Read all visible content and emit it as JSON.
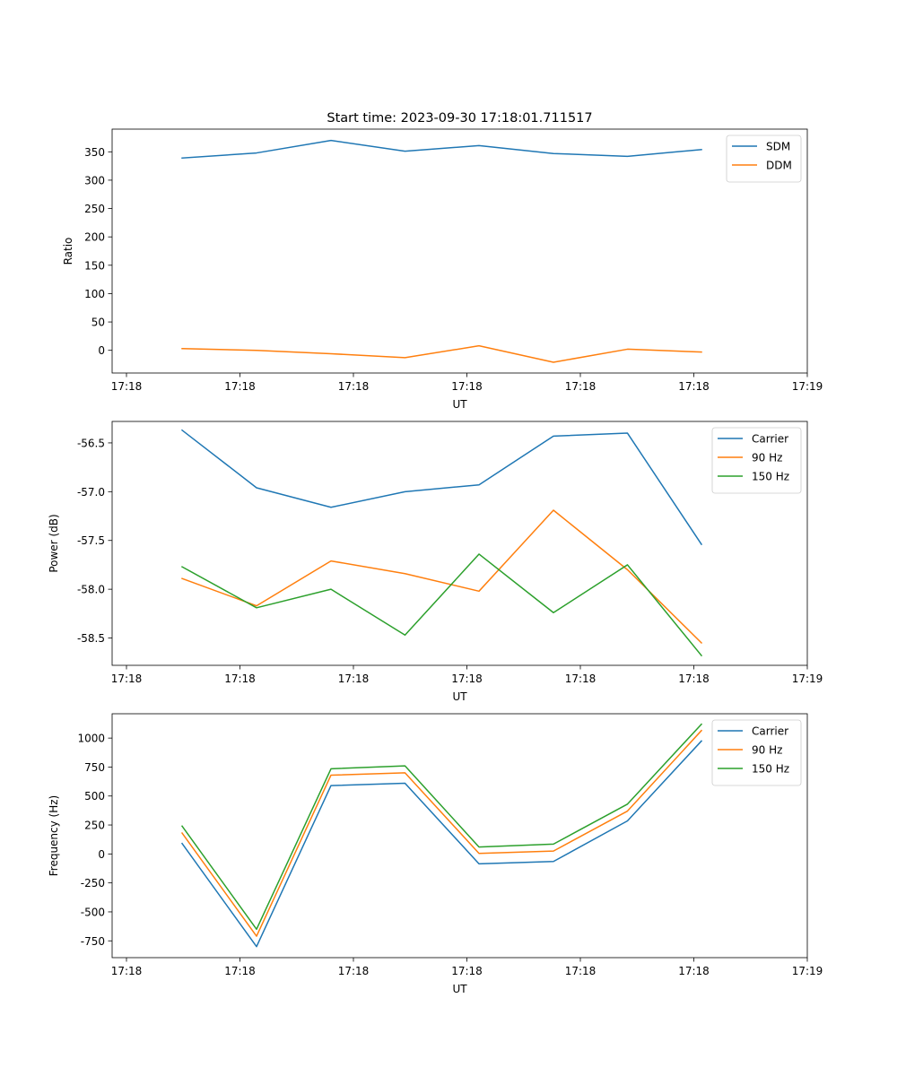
{
  "title": "Start time: 2023-09-30 17:18:01.711517",
  "colors": {
    "blue": "#1f77b4",
    "orange": "#ff7f0e",
    "green": "#2ca02c"
  },
  "chart_data": [
    {
      "type": "line",
      "title": "Start time: 2023-09-30 17:18:01.711517",
      "xlabel": "UT",
      "ylabel": "Ratio",
      "x_ticks": [
        "17:18",
        "17:18",
        "17:18",
        "17:18",
        "17:18",
        "17:18",
        "17:19"
      ],
      "y_ticks": [
        "0",
        "50",
        "100",
        "150",
        "200",
        "250",
        "300",
        "350"
      ],
      "ylim": [
        -40,
        390
      ],
      "legend_position": "upper-right",
      "grid": false,
      "series": [
        {
          "name": "SDM",
          "color": "#1f77b4",
          "values": [
            339,
            348,
            370,
            351,
            361,
            347,
            342,
            354
          ]
        },
        {
          "name": "DDM",
          "color": "#ff7f0e",
          "values": [
            3,
            0,
            -6,
            -13,
            8,
            -21,
            2,
            -3
          ]
        }
      ]
    },
    {
      "type": "line",
      "xlabel": "UT",
      "ylabel": "Power (dB)",
      "x_ticks": [
        "17:18",
        "17:18",
        "17:18",
        "17:18",
        "17:18",
        "17:18",
        "17:19"
      ],
      "y_ticks": [
        "-58.5",
        "-58.0",
        "-57.5",
        "-57.0",
        "-56.5"
      ],
      "ylim": [
        -58.78,
        -56.28
      ],
      "legend_position": "upper-right",
      "grid": false,
      "series": [
        {
          "name": "Carrier",
          "color": "#1f77b4",
          "values": [
            -56.37,
            -56.96,
            -57.16,
            -57.0,
            -56.93,
            -56.43,
            -56.4,
            -57.54
          ]
        },
        {
          "name": "90 Hz",
          "color": "#ff7f0e",
          "values": [
            -57.89,
            -58.17,
            -57.71,
            -57.84,
            -58.02,
            -57.19,
            -57.8,
            -58.55
          ]
        },
        {
          "name": "150 Hz",
          "color": "#2ca02c",
          "values": [
            -57.77,
            -58.19,
            -58.0,
            -58.47,
            -57.64,
            -58.24,
            -57.75,
            -58.68
          ]
        }
      ]
    },
    {
      "type": "line",
      "xlabel": "UT",
      "ylabel": "Frequency (Hz)",
      "x_ticks": [
        "17:18",
        "17:18",
        "17:18",
        "17:18",
        "17:18",
        "17:18",
        "17:19"
      ],
      "y_ticks": [
        "-750",
        "-500",
        "-250",
        "0",
        "250",
        "500",
        "750",
        "1000"
      ],
      "ylim": [
        -895,
        1210
      ],
      "legend_position": "upper-right",
      "grid": false,
      "series": [
        {
          "name": "Carrier",
          "color": "#1f77b4",
          "values": [
            90,
            -800,
            590,
            610,
            -85,
            -65,
            285,
            975
          ]
        },
        {
          "name": "90 Hz",
          "color": "#ff7f0e",
          "values": [
            180,
            -710,
            680,
            700,
            5,
            25,
            370,
            1065
          ]
        },
        {
          "name": "150 Hz",
          "color": "#2ca02c",
          "values": [
            240,
            -650,
            735,
            760,
            60,
            85,
            430,
            1120
          ]
        }
      ]
    }
  ]
}
